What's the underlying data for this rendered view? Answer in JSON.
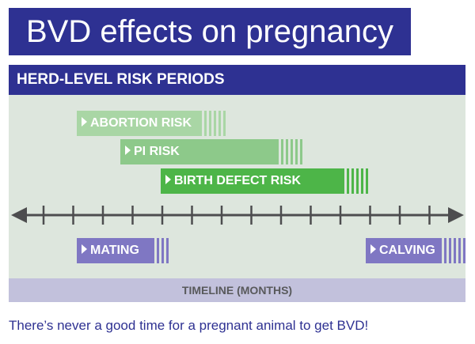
{
  "title": "BVD effects on pregnancy",
  "panel_header": "HERD-LEVEL RISK PERIODS",
  "risk_bars": [
    {
      "label": "ABORTION RISK",
      "color": "#a9d6a5"
    },
    {
      "label": "PI RISK",
      "color": "#8dc98a"
    },
    {
      "label": "BIRTH DEFECT RISK",
      "color": "#4db548"
    }
  ],
  "markers": {
    "mating": "MATING",
    "calving": "CALVING",
    "color": "#7f77c3"
  },
  "timeline_label": "TIMELINE (MONTHS)",
  "caption": "There’s never a good time for a pregnant animal to get BVD!",
  "colors": {
    "navy": "#2e3192",
    "panel_bg": "#dde6dd",
    "axis": "#4d4d4f",
    "timeline_band": "#c2c1dc"
  }
}
